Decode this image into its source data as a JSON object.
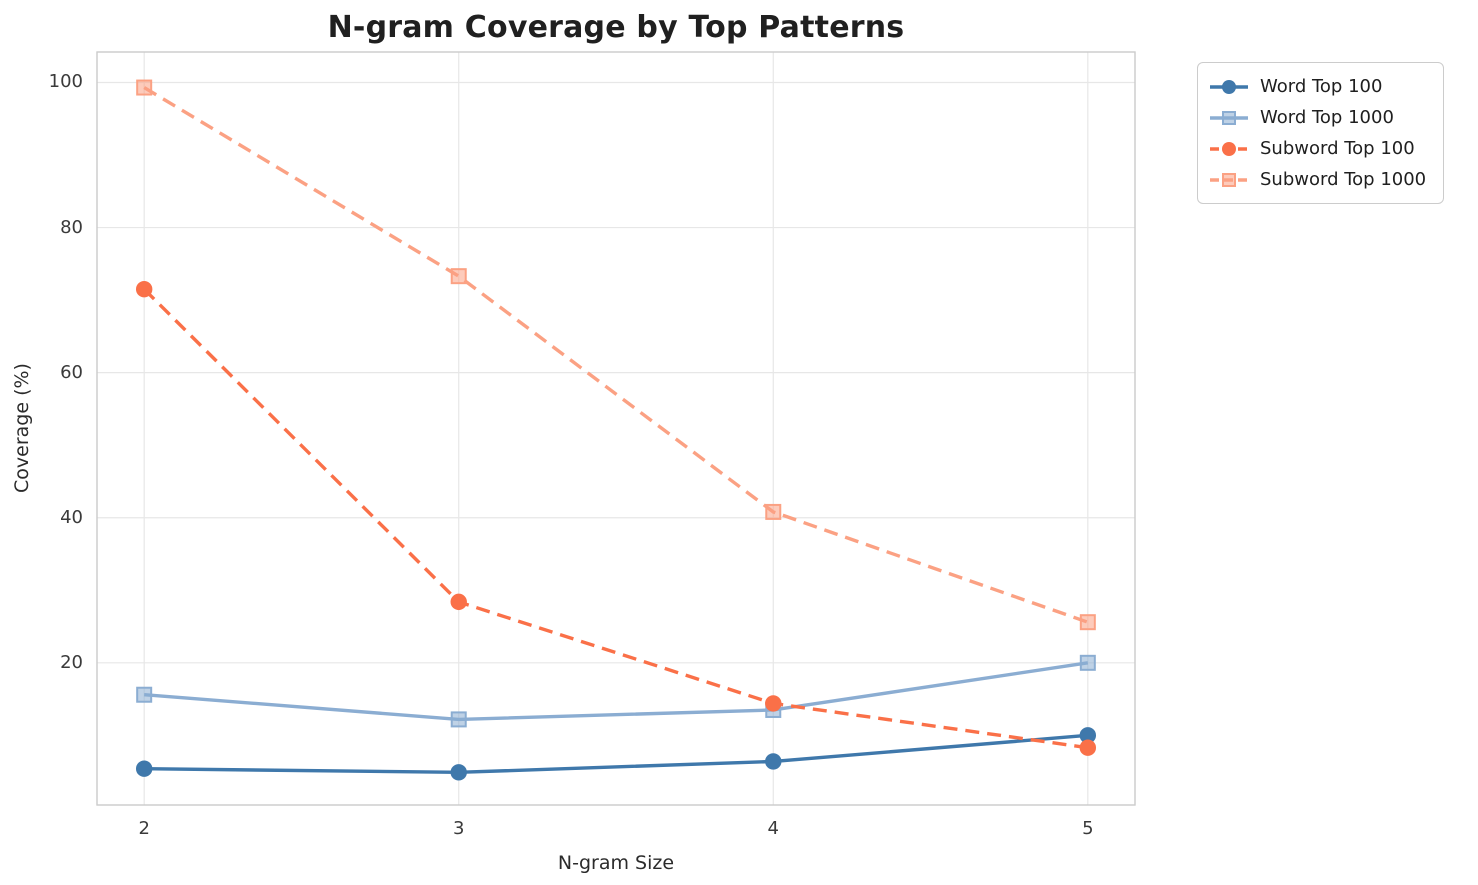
{
  "chart_data": {
    "type": "line",
    "title": "N-gram Coverage by Top Patterns",
    "xlabel": "N-gram Size",
    "ylabel": "Coverage (%)",
    "x": [
      2,
      3,
      4,
      5
    ],
    "xticks": [
      "2",
      "3",
      "4",
      "5"
    ],
    "yticks": [
      20,
      40,
      60,
      80,
      100
    ],
    "xlim": [
      1.85,
      5.15
    ],
    "ylim": [
      0.4,
      104.2
    ],
    "grid": true,
    "legend_position": "outside-top-right",
    "series": [
      {
        "name": "Word Top 100",
        "values": [
          5.4,
          4.9,
          6.4,
          10.0
        ],
        "color": "#3f78ab",
        "line_style": "solid",
        "marker": "circle"
      },
      {
        "name": "Word Top 1000",
        "values": [
          15.6,
          12.2,
          13.5,
          20.0
        ],
        "color": "#8badd2",
        "line_style": "solid",
        "marker": "square"
      },
      {
        "name": "Subword Top 100",
        "values": [
          71.5,
          28.4,
          14.4,
          8.3
        ],
        "color": "#fa7048",
        "line_style": "dashed",
        "marker": "circle"
      },
      {
        "name": "Subword Top 1000",
        "values": [
          99.3,
          73.3,
          40.8,
          25.6
        ],
        "color": "#fba183",
        "line_style": "dashed",
        "marker": "square"
      }
    ],
    "colors": {
      "grid_line": "#e7e7e7",
      "spine": "#cbcbcb",
      "tick_label": "#3a3a3a",
      "title_text": "#202020"
    }
  }
}
